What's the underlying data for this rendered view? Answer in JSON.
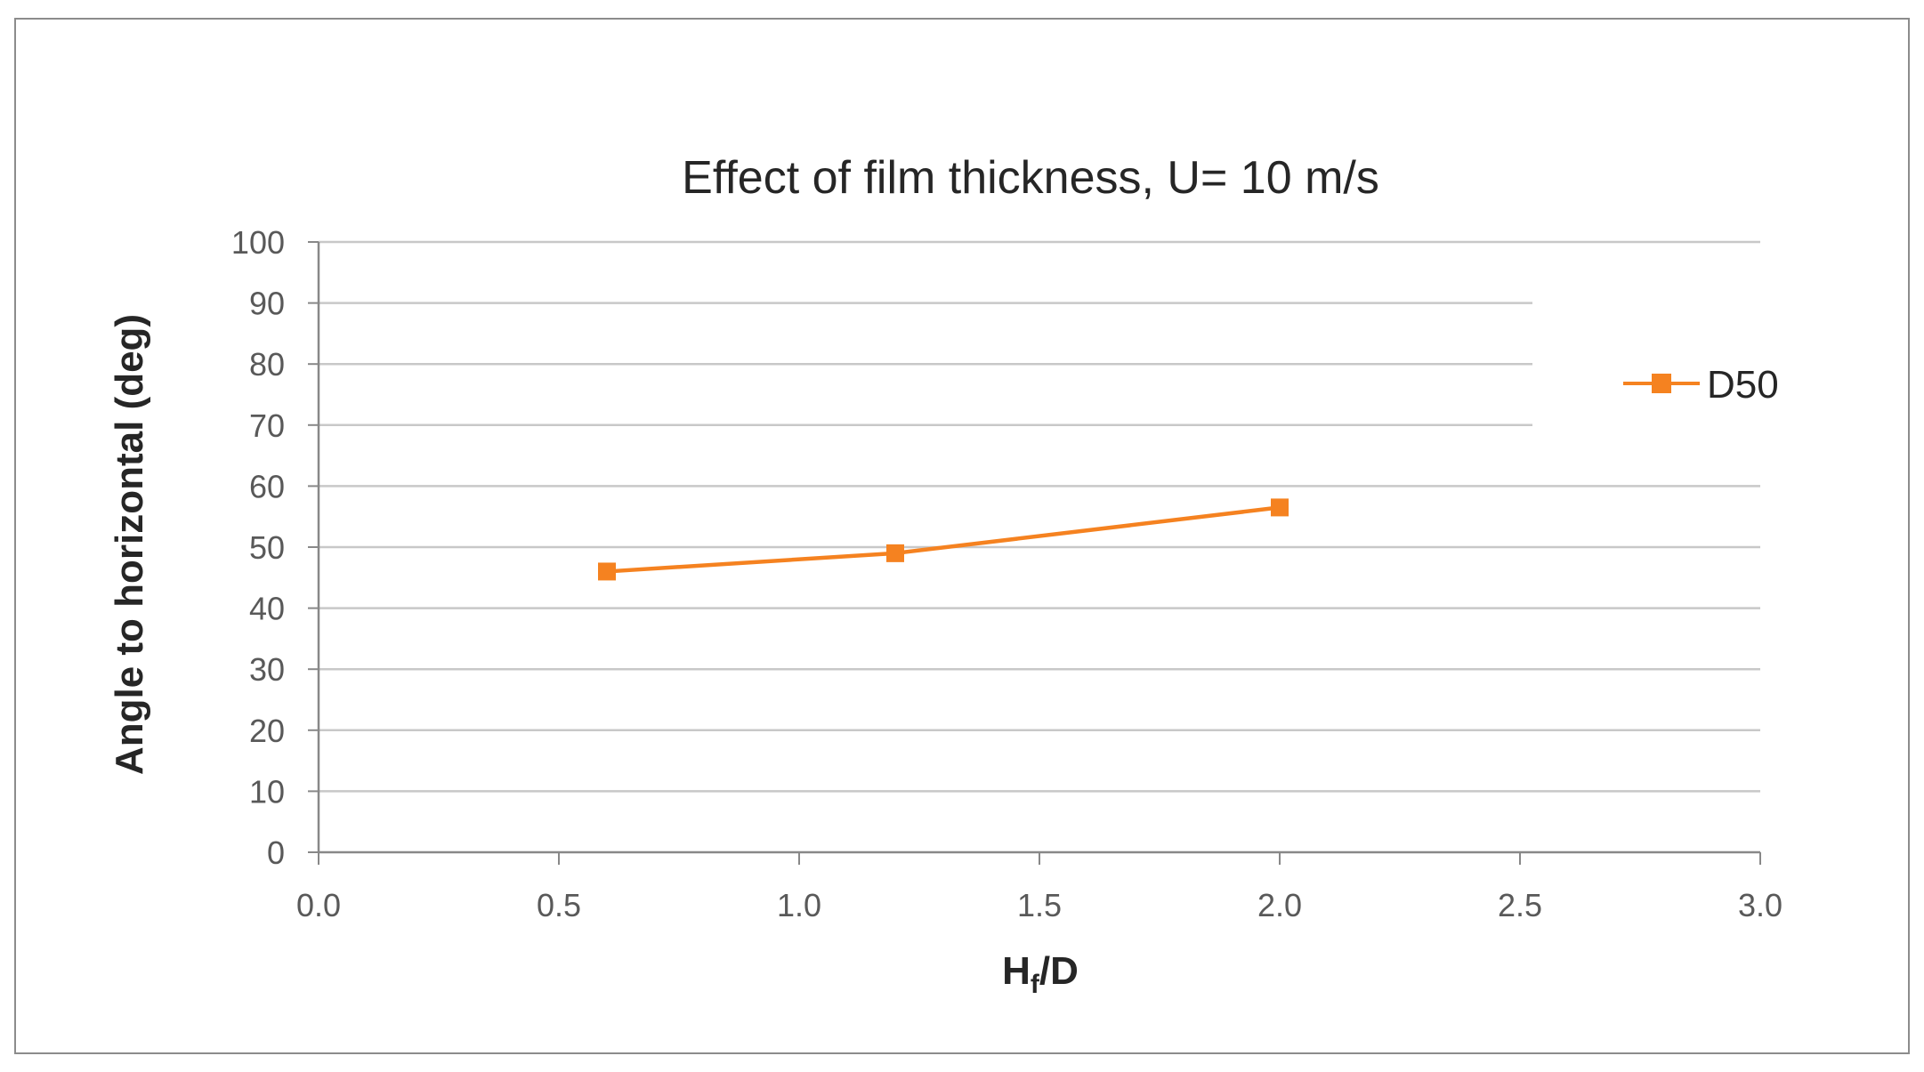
{
  "chart_data": {
    "type": "line",
    "title": "Effect of film thickness,  U= 10 m/s",
    "xlabel_main": "H",
    "xlabel_sub": "f",
    "xlabel_tail": "/D",
    "ylabel": "Angle to horizontal (deg)",
    "xlim": [
      0.0,
      3.0
    ],
    "ylim": [
      0,
      100
    ],
    "xticks": [
      "0.0",
      "0.5",
      "1.0",
      "1.5",
      "2.0",
      "2.5",
      "3.0"
    ],
    "yticks": [
      "0",
      "10",
      "20",
      "30",
      "40",
      "50",
      "60",
      "70",
      "80",
      "90",
      "100"
    ],
    "grid": true,
    "legend_position": "right",
    "series": [
      {
        "name": "D50",
        "color": "#f58220",
        "marker": "square",
        "x": [
          0.6,
          1.2,
          2.0
        ],
        "y": [
          46,
          49,
          56.5
        ]
      }
    ]
  }
}
